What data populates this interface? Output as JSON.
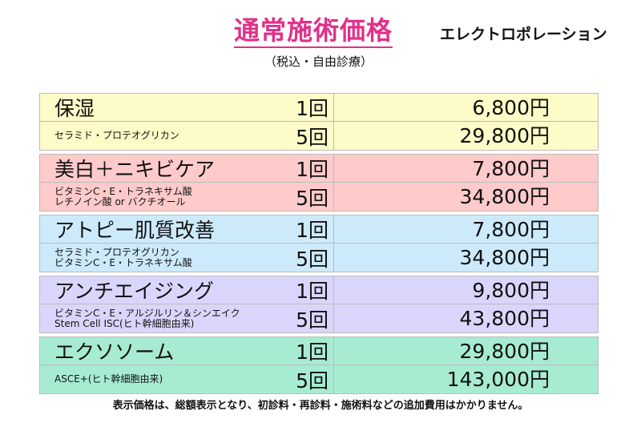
{
  "header": {
    "title": "通常施術価格",
    "subtitle": "（税込・自由診療）",
    "treatment": "エレクトロポレーション"
  },
  "colors": [
    "#fdfbc8",
    "#fecaca",
    "#cdeafb",
    "#dad6fb",
    "#a7ecd1"
  ],
  "sections": [
    {
      "name": "保湿",
      "ingredients": [
        "セラミド・プロテオグリカン"
      ],
      "rows": [
        {
          "count": "1回",
          "price": "6,800円"
        },
        {
          "count": "5回",
          "price": "29,800円"
        }
      ]
    },
    {
      "name": "美白＋ニキビケア",
      "ingredients": [
        "ビタミンC・E・トラネキサム酸",
        "レチノイン酸 or バクチオール"
      ],
      "rows": [
        {
          "count": "1回",
          "price": "7,800円"
        },
        {
          "count": "5回",
          "price": "34,800円"
        }
      ]
    },
    {
      "name": "アトピー肌質改善",
      "ingredients": [
        "セラミド・プロテオグリカン",
        "ビタミンC・E・トラネキサム酸"
      ],
      "rows": [
        {
          "count": "1回",
          "price": "7,800円"
        },
        {
          "count": "5回",
          "price": "34,800円"
        }
      ]
    },
    {
      "name": "アンチエイジング",
      "ingredients": [
        "ビタミンC・E・アルジルリン＆シンエイク",
        "Stem Cell ISC(ヒト幹細胞由来)"
      ],
      "rows": [
        {
          "count": "1回",
          "price": "9,800円"
        },
        {
          "count": "5回",
          "price": "43,800円"
        }
      ]
    },
    {
      "name": "エクソソーム",
      "ingredients": [
        "ASCE+(ヒト幹細胞由来)"
      ],
      "rows": [
        {
          "count": "1回",
          "price": "29,800円"
        },
        {
          "count": "5回",
          "price": "143,000円"
        }
      ]
    }
  ],
  "footer": "表示価格は、総額表示となり、初診料・再診料・施術料などの追加費用はかかりません。"
}
